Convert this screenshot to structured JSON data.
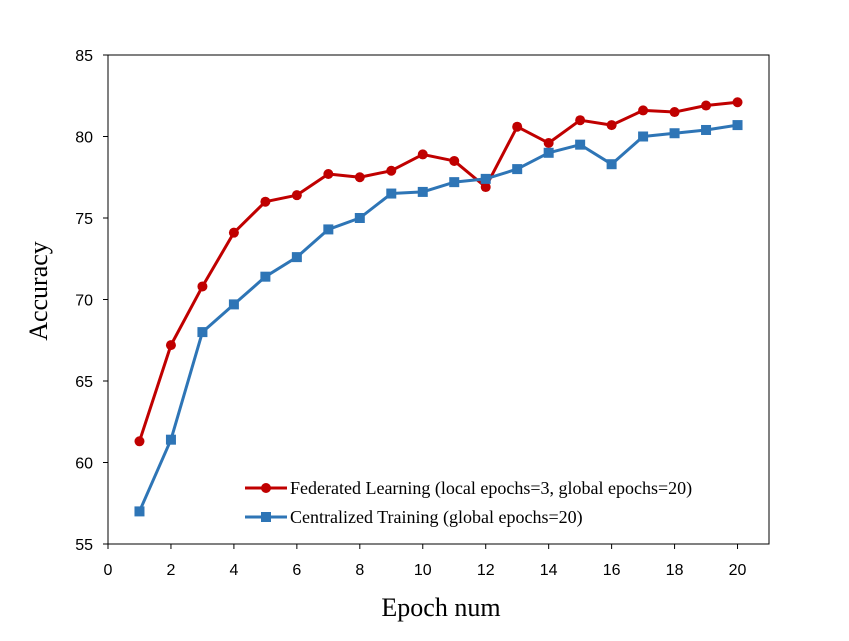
{
  "chart_data": {
    "type": "line",
    "xlabel": "Epoch num",
    "ylabel": "Accuracy",
    "xlim": [
      0,
      21
    ],
    "ylim": [
      55,
      85
    ],
    "xticks": [
      0,
      2,
      4,
      6,
      8,
      10,
      12,
      14,
      16,
      18,
      20
    ],
    "yticks": [
      55,
      60,
      65,
      70,
      75,
      80,
      85
    ],
    "grid": false,
    "legend_position": "bottom-right",
    "x": [
      1,
      2,
      3,
      4,
      5,
      6,
      7,
      8,
      9,
      10,
      11,
      12,
      13,
      14,
      15,
      16,
      17,
      18,
      19,
      20
    ],
    "series": [
      {
        "name": "Federated Learning (local epochs=3, global epochs=20)",
        "color": "#c00000",
        "marker": "circle",
        "values": [
          61.3,
          67.2,
          70.8,
          74.1,
          76.0,
          76.4,
          77.7,
          77.5,
          77.9,
          78.9,
          78.5,
          76.9,
          80.6,
          79.6,
          81.0,
          80.7,
          81.6,
          81.5,
          81.9,
          82.1
        ]
      },
      {
        "name": "Centralized Training (global epochs=20)",
        "color": "#2e75b6",
        "marker": "square",
        "values": [
          57.0,
          61.4,
          68.0,
          69.7,
          71.4,
          72.6,
          74.3,
          75.0,
          76.5,
          76.6,
          77.2,
          77.4,
          78.0,
          79.0,
          79.5,
          78.3,
          80.0,
          80.2,
          80.4,
          80.7
        ]
      }
    ]
  }
}
